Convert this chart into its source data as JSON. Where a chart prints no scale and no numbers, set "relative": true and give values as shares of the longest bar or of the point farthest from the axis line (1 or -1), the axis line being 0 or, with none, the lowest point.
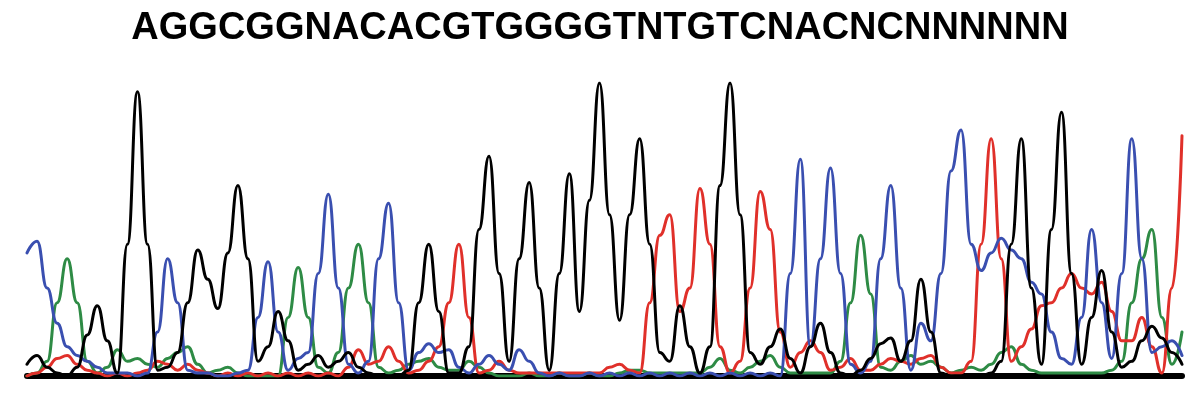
{
  "chart_data": {
    "type": "line",
    "title": "AGGCGGNACACGTGGGGTNTGTCNACNCNNNNNN",
    "relative": true,
    "grid": false,
    "marker": "none",
    "line_style": "solid",
    "categories": [
      null,
      null,
      null,
      null,
      null,
      null,
      null,
      null,
      null,
      null,
      null,
      null,
      null,
      null,
      null,
      null,
      null,
      null,
      null,
      null,
      null,
      null,
      null,
      null,
      null,
      null,
      null,
      null,
      null,
      null,
      null,
      null,
      null,
      null,
      null,
      null,
      null,
      null,
      null,
      null,
      null,
      null,
      null,
      null,
      null,
      null,
      null,
      null,
      null,
      null,
      null,
      null,
      null,
      null,
      null,
      null,
      null,
      null,
      null,
      null,
      null,
      null,
      null,
      null,
      null,
      null,
      null,
      null,
      null,
      null,
      null,
      null,
      null,
      null,
      null,
      null,
      null,
      null,
      null,
      null,
      null,
      null,
      null,
      null,
      null,
      null,
      null,
      null,
      null,
      null,
      null,
      null,
      null,
      null,
      null,
      null,
      null,
      null,
      null,
      null,
      null,
      null,
      null,
      null,
      null,
      null,
      null,
      null,
      null,
      null,
      null,
      null,
      null,
      null,
      null,
      null
    ],
    "series": [
      {
        "color": "#2e8b45",
        "values": [
          0.0,
          0.01,
          0.05,
          0.25,
          0.4,
          0.25,
          0.05,
          0.01,
          0.03,
          0.09,
          0.05,
          0.06,
          0.04,
          0.03,
          0.06,
          0.08,
          0.1,
          0.04,
          0.01,
          0.02,
          0.03,
          0.01,
          0.0,
          0.0,
          0.0,
          0.0,
          0.2,
          0.37,
          0.2,
          0.03,
          0.01,
          0.08,
          0.3,
          0.45,
          0.25,
          0.03,
          0.01,
          0.02,
          0.04,
          0.05,
          0.06,
          0.03,
          0.02,
          0.02,
          0.05,
          0.03,
          0.01,
          0.0,
          0.0,
          0.0,
          0.01,
          0.0,
          0.0,
          0.01,
          0.0,
          0.0,
          0.01,
          0.0,
          0.0,
          0.01,
          0.02,
          0.02,
          0.01,
          0.01,
          0.01,
          0.01,
          0.01,
          0.01,
          0.03,
          0.06,
          0.02,
          0.01,
          0.03,
          0.05,
          0.07,
          0.03,
          0.01,
          0.01,
          0.01,
          0.01,
          0.01,
          0.05,
          0.25,
          0.48,
          0.28,
          0.03,
          0.02,
          0.05,
          0.07,
          0.04,
          0.05,
          0.03,
          0.01,
          0.02,
          0.03,
          0.02,
          0.04,
          0.08,
          0.1,
          0.04,
          0.02,
          0.01,
          0.01,
          0.01,
          0.01,
          0.01,
          0.01,
          0.01,
          0.02,
          0.05,
          0.25,
          0.4,
          0.5,
          0.2,
          0.04,
          0.15
        ]
      },
      {
        "color": "#e0302a",
        "values": [
          0.0,
          0.01,
          0.03,
          0.06,
          0.07,
          0.04,
          0.02,
          0.01,
          0.0,
          0.01,
          0.0,
          0.01,
          0.02,
          0.05,
          0.04,
          0.02,
          0.04,
          0.02,
          0.01,
          0.0,
          0.01,
          0.0,
          0.01,
          0.0,
          0.01,
          0.0,
          0.01,
          0.0,
          0.01,
          0.0,
          0.01,
          0.0,
          0.03,
          0.09,
          0.04,
          0.05,
          0.1,
          0.05,
          0.01,
          0.02,
          0.05,
          0.1,
          0.25,
          0.45,
          0.2,
          0.01,
          0.02,
          0.05,
          0.02,
          0.01,
          0.01,
          0.01,
          0.01,
          0.01,
          0.01,
          0.01,
          0.01,
          0.01,
          0.03,
          0.04,
          0.02,
          0.01,
          0.25,
          0.48,
          0.55,
          0.22,
          0.3,
          0.64,
          0.45,
          0.1,
          0.01,
          0.05,
          0.3,
          0.63,
          0.5,
          0.15,
          0.03,
          0.08,
          0.12,
          0.08,
          0.02,
          0.03,
          0.06,
          0.02,
          0.02,
          0.04,
          0.06,
          0.05,
          0.04,
          0.06,
          0.07,
          0.03,
          0.01,
          0.01,
          0.05,
          0.45,
          0.81,
          0.4,
          0.05,
          0.1,
          0.16,
          0.24,
          0.25,
          0.3,
          0.35,
          0.3,
          0.28,
          0.32,
          0.22,
          0.12,
          0.12,
          0.2,
          0.1,
          0.01,
          0.3,
          0.82
        ]
      },
      {
        "color": "#3a4fb0",
        "values": [
          0.42,
          0.46,
          0.3,
          0.18,
          0.1,
          0.07,
          0.05,
          0.03,
          0.01,
          0.01,
          0.01,
          0.0,
          0.01,
          0.15,
          0.4,
          0.25,
          0.02,
          0.01,
          0.01,
          0.0,
          0.0,
          0.01,
          0.02,
          0.2,
          0.39,
          0.15,
          0.02,
          0.06,
          0.08,
          0.35,
          0.62,
          0.3,
          0.04,
          0.01,
          0.05,
          0.4,
          0.59,
          0.25,
          0.02,
          0.08,
          0.11,
          0.08,
          0.09,
          0.03,
          0.01,
          0.04,
          0.07,
          0.04,
          0.02,
          0.09,
          0.05,
          0.01,
          0.0,
          0.01,
          0.0,
          0.0,
          0.01,
          0.0,
          0.01,
          0.0,
          0.01,
          0.0,
          0.01,
          0.0,
          0.01,
          0.0,
          0.01,
          0.0,
          0.01,
          0.0,
          0.01,
          0.0,
          0.01,
          0.0,
          0.01,
          0.0,
          0.35,
          0.74,
          0.1,
          0.4,
          0.71,
          0.35,
          0.04,
          0.01,
          0.05,
          0.4,
          0.65,
          0.3,
          0.02,
          0.18,
          0.12,
          0.35,
          0.7,
          0.84,
          0.45,
          0.36,
          0.42,
          0.47,
          0.43,
          0.4,
          0.32,
          0.28,
          0.15,
          0.06,
          0.04,
          0.2,
          0.5,
          0.25,
          0.06,
          0.35,
          0.81,
          0.4,
          0.08,
          0.1,
          0.12,
          0.07
        ]
      },
      {
        "color": "#000000",
        "values": [
          0.04,
          0.07,
          0.03,
          0.01,
          0.0,
          0.03,
          0.14,
          0.24,
          0.12,
          0.01,
          0.45,
          0.97,
          0.45,
          0.02,
          0.03,
          0.08,
          0.25,
          0.43,
          0.33,
          0.23,
          0.42,
          0.65,
          0.4,
          0.05,
          0.1,
          0.22,
          0.12,
          0.02,
          0.04,
          0.07,
          0.03,
          0.05,
          0.08,
          0.03,
          0.01,
          0.0,
          0.0,
          0.0,
          0.02,
          0.25,
          0.45,
          0.22,
          0.01,
          0.01,
          0.1,
          0.5,
          0.75,
          0.35,
          0.05,
          0.4,
          0.66,
          0.3,
          0.02,
          0.35,
          0.69,
          0.22,
          0.6,
          1.0,
          0.55,
          0.19,
          0.55,
          0.81,
          0.45,
          0.08,
          0.05,
          0.24,
          0.1,
          0.01,
          0.1,
          0.65,
          1.0,
          0.55,
          0.08,
          0.04,
          0.1,
          0.16,
          0.06,
          0.01,
          0.1,
          0.18,
          0.08,
          0.01,
          0.0,
          0.02,
          0.06,
          0.11,
          0.13,
          0.05,
          0.12,
          0.33,
          0.15,
          0.01,
          0.0,
          0.0,
          0.0,
          0.0,
          0.01,
          0.05,
          0.45,
          0.81,
          0.3,
          0.04,
          0.5,
          0.9,
          0.35,
          0.04,
          0.2,
          0.36,
          0.15,
          0.03,
          0.05,
          0.12,
          0.17,
          0.13,
          0.08,
          0.04
        ]
      }
    ]
  }
}
